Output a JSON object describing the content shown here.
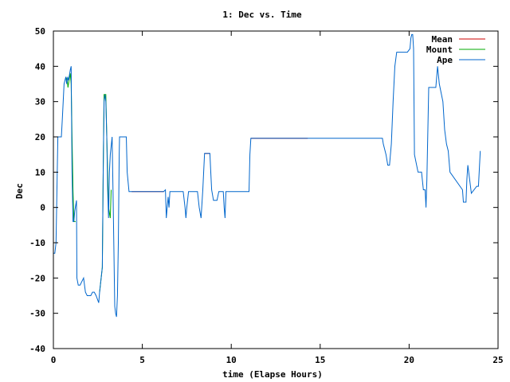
{
  "chart_data": {
    "type": "line",
    "title": "1: Dec vs. Time",
    "xlabel": "time (Elapse Hours)",
    "ylabel": "Dec",
    "xlim": [
      0,
      25
    ],
    "ylim": [
      -40,
      50
    ],
    "x_ticks": [
      "0",
      "5",
      "10",
      "15",
      "20",
      "25"
    ],
    "y_ticks": [
      "-40",
      "-30",
      "-20",
      "-10",
      "0",
      "10",
      "20",
      "30",
      "40",
      "50"
    ],
    "x_tick_values": [
      0,
      5,
      10,
      15,
      20,
      25
    ],
    "y_tick_values": [
      -40,
      -30,
      -20,
      -10,
      0,
      10,
      20,
      30,
      40,
      50
    ],
    "grid": false,
    "legend": "top-right",
    "series": [
      {
        "name": "Mean",
        "color": "#cc0000",
        "x": [
          4.4,
          6.2,
          8.5,
          8.8,
          11.1,
          14.3
        ],
        "y": [
          4.5,
          4.5,
          15.3,
          15.3,
          19.6,
          19.6
        ],
        "segments": [
          [
            0,
            1
          ],
          [
            2,
            3
          ],
          [
            4,
            5
          ]
        ]
      },
      {
        "name": "Mount",
        "color": "#00aa00",
        "x": [
          0.7,
          0.78,
          0.82,
          0.88,
          0.95,
          1.0,
          1.05,
          1.1,
          1.15,
          1.25,
          2.6,
          2.75,
          2.8,
          2.85,
          2.9,
          2.95,
          3.0,
          3.05,
          3.1,
          3.2,
          3.25
        ],
        "y": [
          37,
          36,
          34,
          36,
          38,
          35,
          20,
          5,
          -4,
          -4,
          -24,
          -17,
          10,
          32,
          32,
          32,
          20,
          10,
          0,
          -3,
          5
        ],
        "segments": [
          [
            0,
            9
          ],
          [
            10,
            20
          ]
        ]
      },
      {
        "name": "Ape",
        "color": "#0066cc",
        "x": [
          0,
          0.08,
          0.15,
          0.25,
          0.3,
          0.35,
          0.45,
          0.5,
          0.55,
          0.6,
          0.7,
          0.75,
          0.8,
          0.85,
          0.95,
          1.0,
          1.05,
          1.1,
          1.15,
          1.2,
          1.3,
          1.32,
          1.4,
          1.5,
          1.7,
          1.8,
          1.9,
          2.1,
          2.2,
          2.3,
          2.4,
          2.55,
          2.6,
          2.75,
          2.8,
          2.85,
          2.9,
          2.95,
          3.0,
          3.05,
          3.1,
          3.15,
          3.2,
          3.3,
          3.35,
          3.45,
          3.5,
          3.55,
          3.6,
          3.65,
          3.7,
          3.72,
          3.75,
          3.8,
          3.9,
          3.95,
          4.1,
          4.15,
          4.25,
          4.35,
          4.4,
          6.2,
          6.3,
          6.35,
          6.4,
          6.45,
          6.5,
          6.55,
          6.6,
          6.7,
          6.8,
          6.9,
          7.0,
          7.3,
          7.4,
          7.45,
          7.5,
          7.6,
          7.7,
          7.8,
          8.1,
          8.2,
          8.3,
          8.4,
          8.5,
          8.8,
          8.85,
          8.9,
          9.0,
          9.2,
          9.3,
          9.4,
          9.55,
          9.6,
          9.65,
          9.7,
          9.8,
          11.0,
          11.05,
          11.1,
          14.3,
          18.5,
          18.55,
          18.7,
          18.8,
          18.9,
          19.0,
          19.1,
          19.2,
          19.3,
          19.5,
          19.7,
          19.9,
          20.05,
          20.1,
          20.15,
          20.2,
          20.25,
          20.3,
          20.5,
          20.6,
          20.7,
          20.8,
          20.9,
          20.95,
          21.0,
          21.1,
          21.4,
          21.5,
          21.6,
          21.7,
          21.9,
          22.0,
          22.1,
          22.2,
          22.3,
          23.0,
          23.05,
          23.1,
          23.2,
          23.25,
          23.3,
          23.5,
          23.8,
          23.9,
          24.0
        ],
        "y": [
          -13,
          -13,
          -10,
          20,
          20,
          20,
          20,
          25,
          30,
          35,
          37,
          35,
          37,
          36,
          39,
          40,
          10,
          -4,
          -4,
          -1,
          2,
          -20,
          -22,
          -22,
          -20,
          -24,
          -25,
          -25,
          -24,
          -24,
          -25,
          -27,
          -24,
          -17,
          10,
          30,
          32,
          30,
          20,
          5,
          -3,
          10,
          15,
          20,
          5,
          -28,
          -30,
          -31,
          -25,
          -10,
          15,
          20,
          20,
          20,
          20,
          20,
          20,
          10,
          4.5,
          4.5,
          4.5,
          4.5,
          5,
          -3,
          0,
          3,
          0,
          4.5,
          4.5,
          4.5,
          4.5,
          4.5,
          4.5,
          4.5,
          0,
          -3,
          0,
          4.5,
          4.5,
          4.5,
          4.5,
          0,
          -3,
          5,
          15.3,
          15.3,
          10,
          5,
          2,
          2,
          4.5,
          4.5,
          4.5,
          0,
          -3,
          4.5,
          4.5,
          4.5,
          15,
          19.6,
          19.6,
          19.6,
          18,
          15,
          12,
          12,
          18,
          30,
          40,
          44,
          44,
          44,
          44,
          45,
          48,
          49,
          49,
          45,
          15,
          10,
          10,
          10,
          5,
          5,
          0,
          8,
          34,
          34,
          34,
          40,
          35,
          30,
          22,
          18,
          16,
          10,
          5,
          1.5,
          1.5,
          1.5,
          8,
          12,
          4,
          6,
          6,
          16
        ]
      }
    ]
  }
}
